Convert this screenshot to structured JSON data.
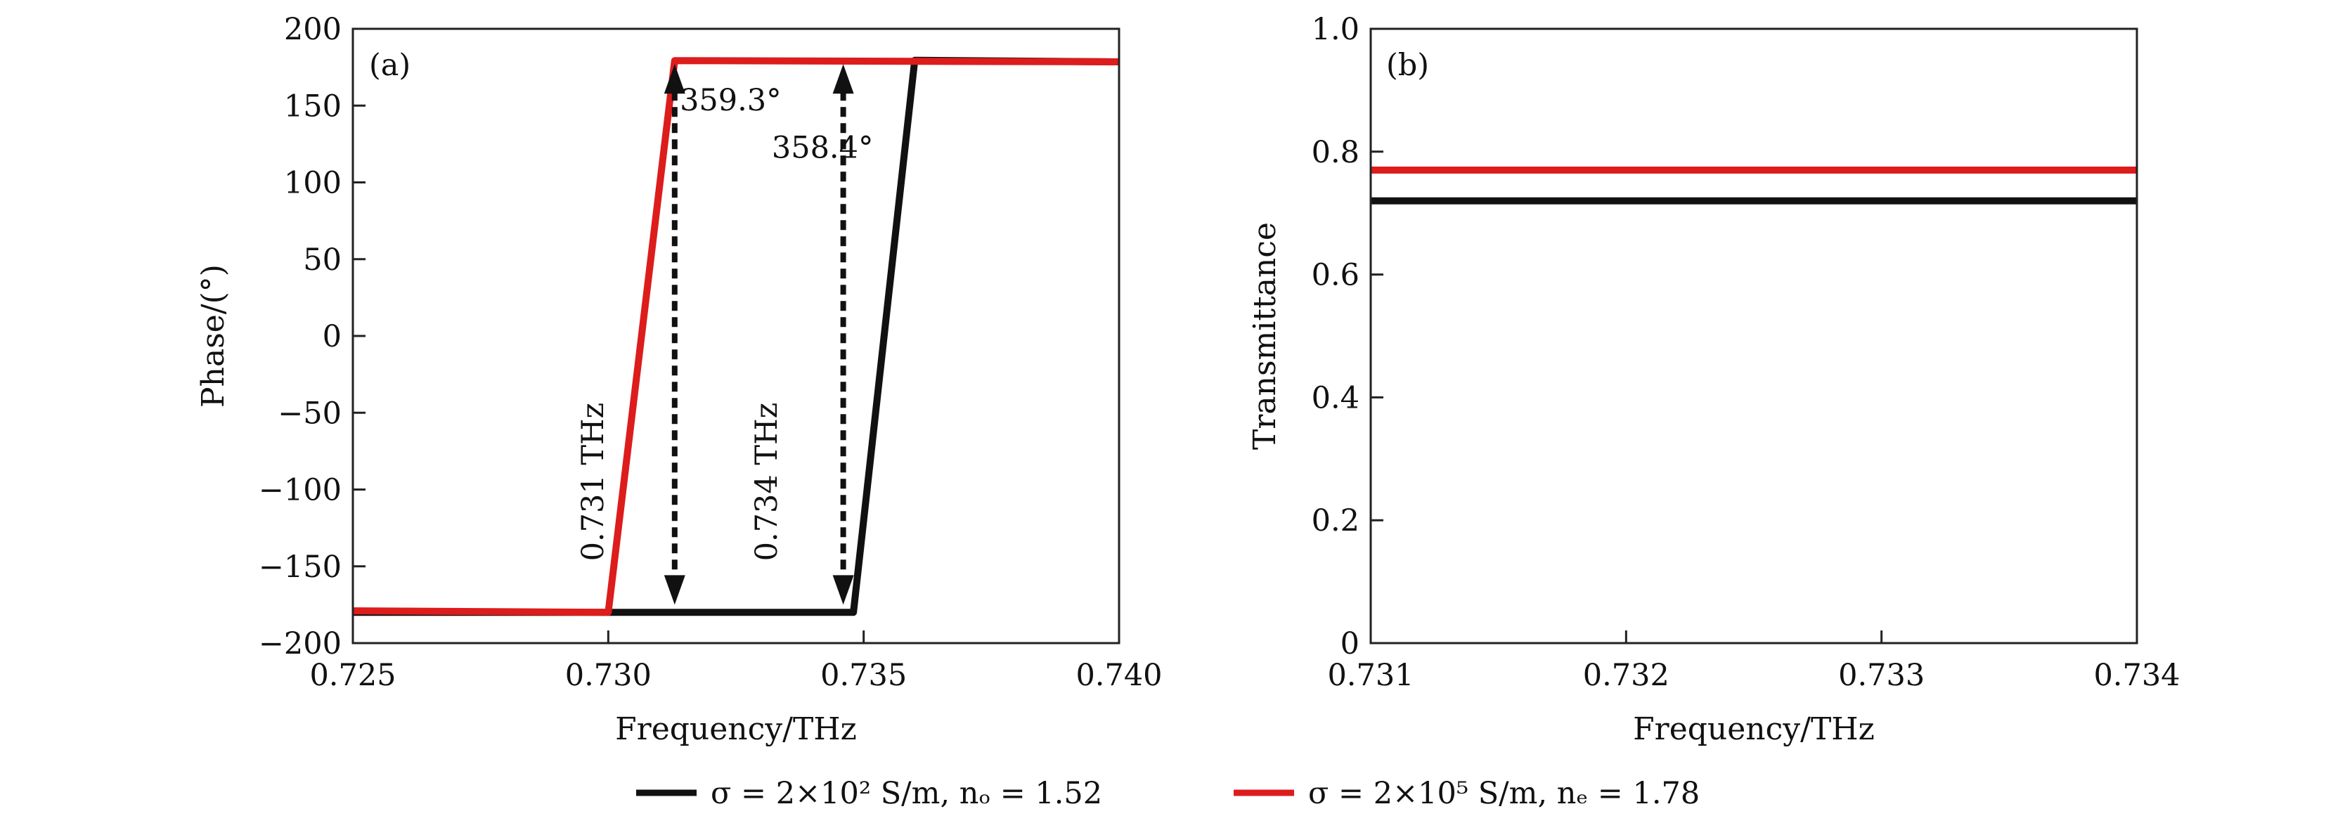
{
  "colors": {
    "black_series": "#111111",
    "red_series": "#dd1c1c",
    "axis": "#222222",
    "arrow": "#111111"
  },
  "chart_data": [
    {
      "type": "line",
      "panel_tag": "(a)",
      "xlabel": "Frequency/THz",
      "ylabel": "Phase/(°)",
      "xlim": [
        0.725,
        0.74
      ],
      "ylim": [
        -200,
        200
      ],
      "xticks": [
        {
          "value": 0.725,
          "label": "0.725"
        },
        {
          "value": 0.73,
          "label": "0.730"
        },
        {
          "value": 0.735,
          "label": "0.735"
        },
        {
          "value": 0.74,
          "label": "0.740"
        }
      ],
      "yticks": [
        {
          "value": 200,
          "label": "200"
        },
        {
          "value": 150,
          "label": "150"
        },
        {
          "value": 100,
          "label": "100"
        },
        {
          "value": 50,
          "label": "50"
        },
        {
          "value": 0,
          "label": "0"
        },
        {
          "value": -50,
          "label": "−50"
        },
        {
          "value": -100,
          "label": "−100"
        },
        {
          "value": -150,
          "label": "−150"
        },
        {
          "value": -200,
          "label": "−200"
        }
      ],
      "series": [
        {
          "color_key": "black_series",
          "x": [
            0.725,
            0.73,
            0.7348,
            0.736,
            0.74
          ],
          "y": [
            -180,
            -180,
            -180,
            179.5,
            178.5
          ]
        },
        {
          "color_key": "red_series",
          "x": [
            0.725,
            0.73,
            0.7313,
            0.74
          ],
          "y": [
            -179,
            -180,
            179.3,
            178.5
          ]
        }
      ],
      "annotations": [
        {
          "kind": "double-arrow",
          "x": 0.7313,
          "y_from": -175,
          "y_to": 177,
          "rotated_label": "0.731 THz",
          "label_x": 0.7299,
          "label_y": -95,
          "value_label": "359.3°",
          "value_x": 0.7314,
          "value_y": 147
        }
      ],
      "annotations2": [
        {
          "kind": "double-arrow",
          "x": 0.7346,
          "y_from": -175,
          "y_to": 177,
          "rotated_label": "0.734 THz",
          "label_x": 0.7333,
          "label_y": -95,
          "value_label": "358.4°",
          "value_x": 0.7332,
          "value_y": 116
        }
      ]
    },
    {
      "type": "line",
      "panel_tag": "(b)",
      "xlabel": "Frequency/THz",
      "ylabel": "Transmittance",
      "xlim": [
        0.731,
        0.734
      ],
      "ylim": [
        0,
        1.0
      ],
      "xticks": [
        {
          "value": 0.731,
          "label": "0.731"
        },
        {
          "value": 0.732,
          "label": "0.732"
        },
        {
          "value": 0.733,
          "label": "0.733"
        },
        {
          "value": 0.734,
          "label": "0.734"
        }
      ],
      "yticks": [
        {
          "value": 0,
          "label": "0"
        },
        {
          "value": 0.2,
          "label": "0.2"
        },
        {
          "value": 0.4,
          "label": "0.4"
        },
        {
          "value": 0.6,
          "label": "0.6"
        },
        {
          "value": 0.8,
          "label": "0.8"
        },
        {
          "value": 1.0,
          "label": "1.0"
        }
      ],
      "series": [
        {
          "color_key": "black_series",
          "x": [
            0.731,
            0.734
          ],
          "y": [
            0.72,
            0.72
          ]
        },
        {
          "color_key": "red_series",
          "x": [
            0.731,
            0.734
          ],
          "y": [
            0.77,
            0.77
          ]
        }
      ]
    }
  ],
  "legend": {
    "placement": "bottom-center",
    "items": [
      {
        "color_key": "black_series",
        "label": "σ = 2×10² S/m, nₒ = 1.52"
      },
      {
        "color_key": "red_series",
        "label": "σ = 2×10⁵ S/m, nₑ = 1.78"
      }
    ]
  }
}
